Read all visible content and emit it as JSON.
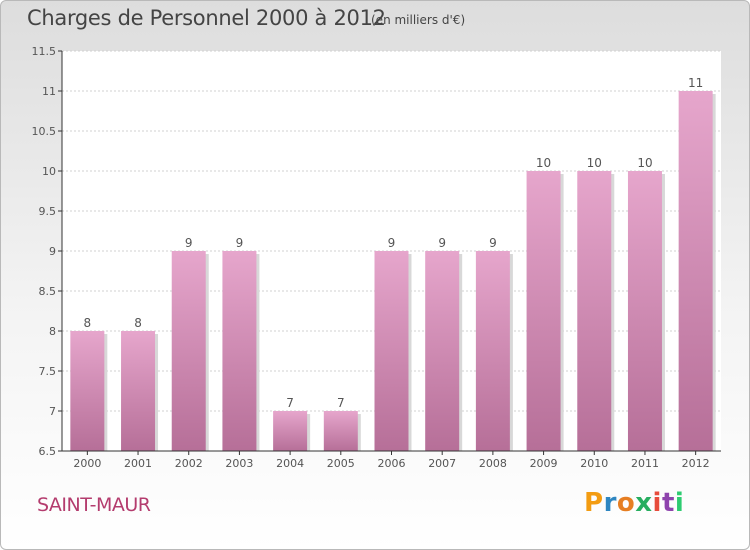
{
  "header": {
    "title": "Charges de Personnel 2000 à 2012",
    "subtitle": "(en milliers d'€)"
  },
  "footer": {
    "location": "SAINT-MAUR",
    "brand": {
      "letters": [
        "P",
        "r",
        "o",
        "x",
        "i",
        "t",
        "i"
      ],
      "colors": [
        "#f39c12",
        "#2e86c1",
        "#e67e22",
        "#27ae60",
        "#e74c3c",
        "#8e44ad",
        "#2ecc71"
      ]
    }
  },
  "colors": {
    "bar_top": "#e6a6cc",
    "bar_bottom": "#b66f98",
    "axis": "#333333",
    "grid": "#d0d0d0"
  },
  "chart_data": {
    "type": "bar",
    "title": "Charges de Personnel 2000 à 2012",
    "subtitle": "(en milliers d'€)",
    "categories": [
      "2000",
      "2001",
      "2002",
      "2003",
      "2004",
      "2005",
      "2006",
      "2007",
      "2008",
      "2009",
      "2010",
      "2011",
      "2012"
    ],
    "values": [
      8,
      8,
      9,
      9,
      7,
      7,
      9,
      9,
      9,
      10,
      10,
      10,
      11
    ],
    "ylim": [
      6.5,
      11.5
    ],
    "yticks": [
      6.5,
      7,
      7.5,
      8,
      8.5,
      9,
      9.5,
      10,
      10.5,
      11,
      11.5
    ],
    "ytick_labels": [
      "6.5",
      "7",
      "7.5",
      "8",
      "8.5",
      "9",
      "9.5",
      "10",
      "10.5",
      "11",
      "11.5"
    ],
    "data_labels": [
      "8",
      "8",
      "9",
      "9",
      "7",
      "7",
      "9",
      "9",
      "9",
      "10",
      "10",
      "10",
      "11"
    ],
    "grid": true
  }
}
